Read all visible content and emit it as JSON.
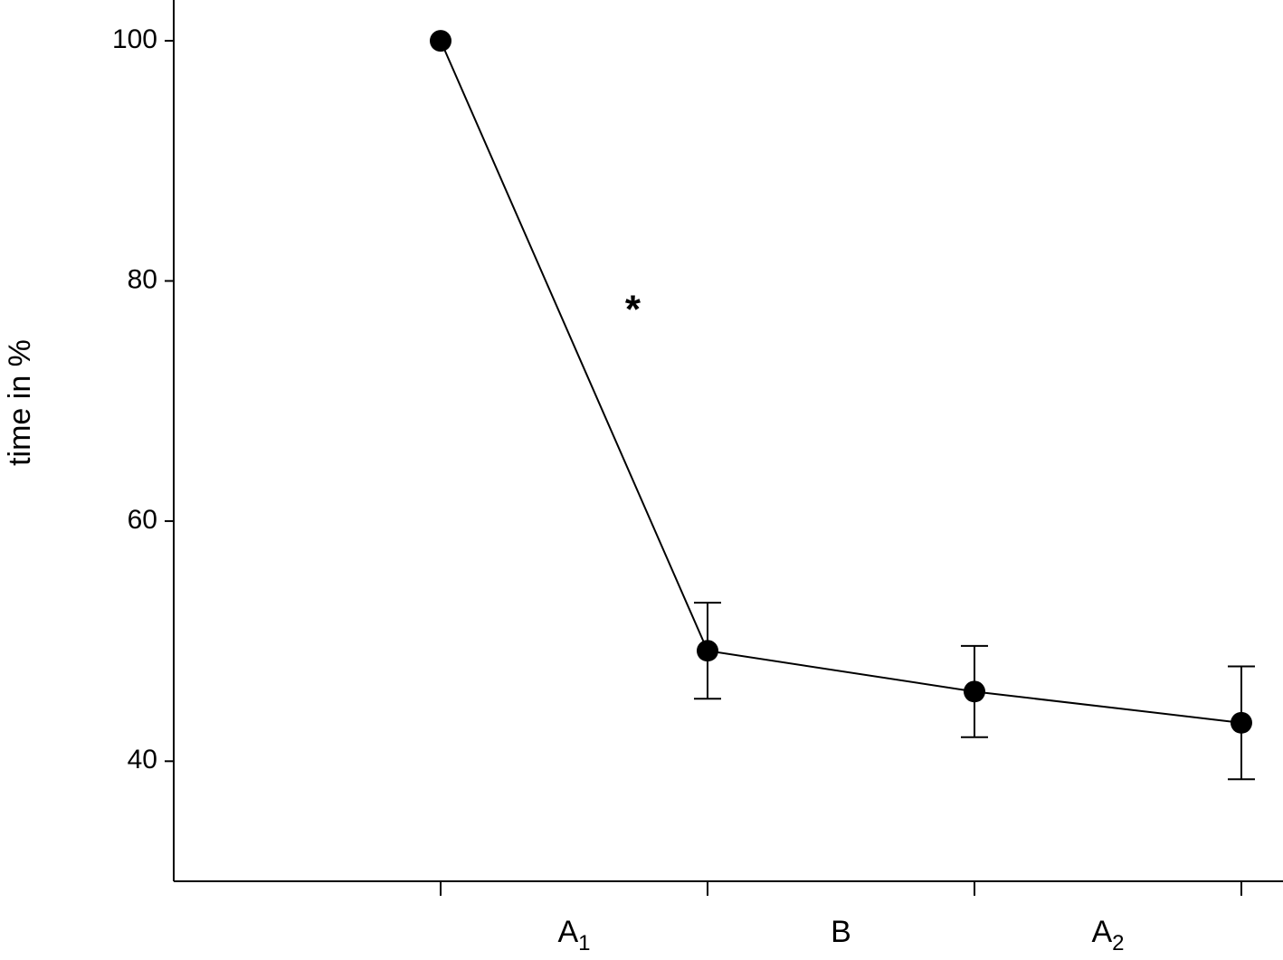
{
  "chart_data": {
    "type": "line",
    "y_label": "time in %",
    "x": [
      1,
      2,
      3,
      4
    ],
    "values": [
      100,
      49.2,
      45.8,
      43.2
    ],
    "errors": [
      null,
      4.0,
      3.8,
      4.7
    ],
    "color": "#000000",
    "xlim": [
      0,
      4.156
    ],
    "xticks": [
      1,
      2,
      3,
      4
    ],
    "ylim": [
      30,
      103.4
    ],
    "yticks": [
      40,
      60,
      80,
      100
    ],
    "phases": [
      {
        "label": "A",
        "subscript": "1"
      },
      {
        "label": "B"
      },
      {
        "label": "A",
        "subscript": "2"
      }
    ],
    "annotations": [
      {
        "text": "*",
        "x": 1.72,
        "y": 78
      }
    ]
  }
}
